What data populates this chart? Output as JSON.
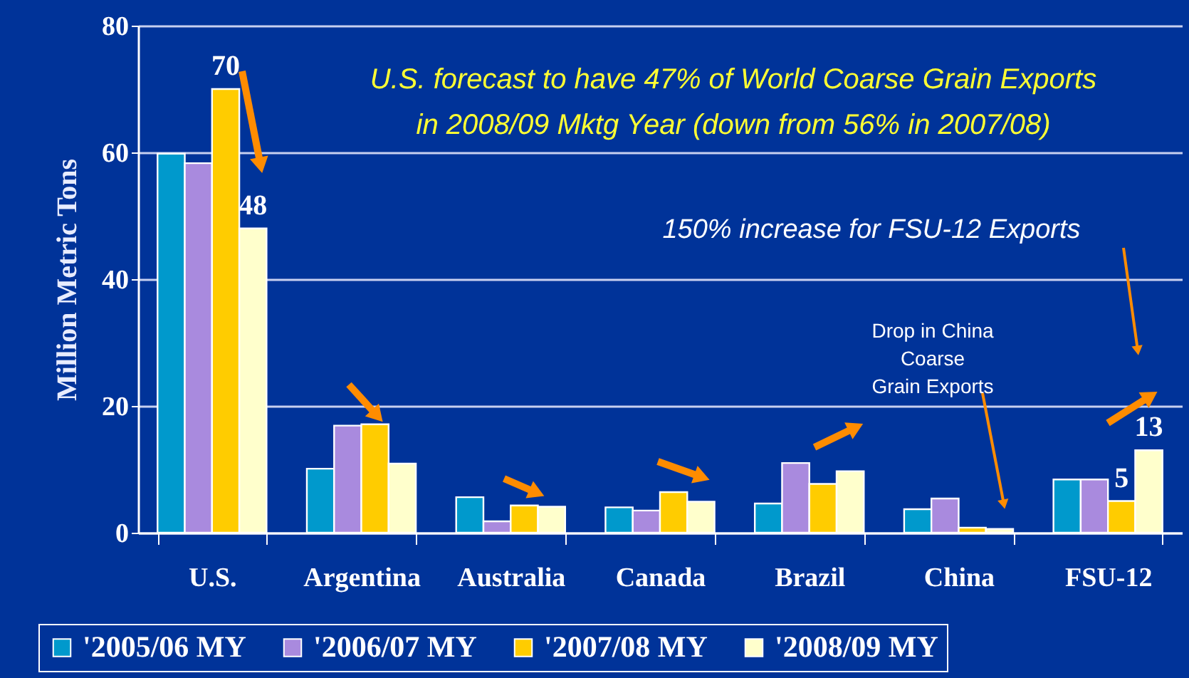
{
  "chart_data": {
    "type": "bar",
    "ylabel": "Million Metric Tons",
    "categories": [
      "U.S.",
      "Argentina",
      "Australia",
      "Canada",
      "Brazil",
      "China",
      "FSU-12"
    ],
    "series": [
      {
        "name": "'2005/06 MY",
        "color": "#0099cc",
        "values": [
          59.8,
          10.1,
          5.6,
          4.0,
          4.6,
          3.7,
          8.4
        ]
      },
      {
        "name": "'2006/07 MY",
        "color": "#a98ade",
        "values": [
          58.3,
          16.9,
          1.8,
          3.5,
          11.0,
          5.4,
          8.4
        ]
      },
      {
        "name": "'2007/08 MY",
        "color": "#ffcc00",
        "values": [
          70,
          17.1,
          4.3,
          6.4,
          7.7,
          0.8,
          5
        ],
        "value_labels": [
          "70",
          null,
          null,
          null,
          null,
          null,
          "5"
        ]
      },
      {
        "name": "'2008/09 MY",
        "color": "#ffffcc",
        "values": [
          48,
          10.9,
          4.1,
          4.9,
          9.7,
          0.6,
          13
        ],
        "value_labels": [
          "48",
          null,
          null,
          null,
          null,
          null,
          "13"
        ]
      }
    ],
    "ylim": [
      0,
      80
    ],
    "yticks": [
      0,
      20,
      40,
      60,
      80
    ],
    "grid": "y",
    "legend": "bottom",
    "annotations": [
      "U.S. forecast to have 47% of World Coarse Grain Exports\nin 2008/09 Mktg Year (down from 56% in 2007/08)",
      "150% increase for FSU-12 Exports",
      "Drop in China\nCoarse\nGrain Exports"
    ]
  }
}
